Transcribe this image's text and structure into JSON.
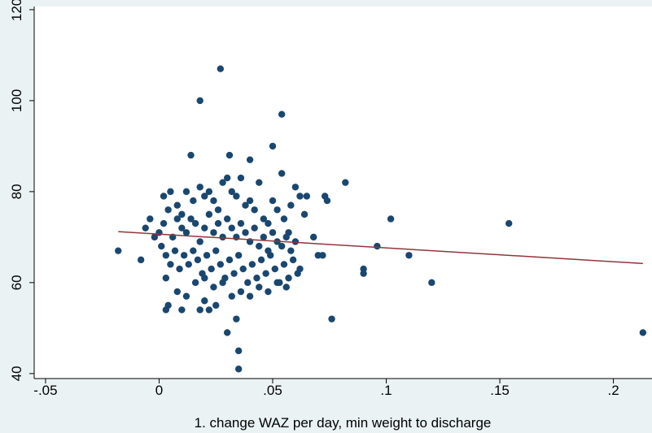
{
  "chart_data": {
    "type": "scatter",
    "x_label": "1. change WAZ per day, min weight to discharge",
    "xlim": [
      -0.055,
      0.217
    ],
    "ylim": [
      38.9,
      120.7
    ],
    "xticks": [
      {
        "value": -0.05,
        "label": "-.05"
      },
      0,
      {
        "value": 0.05,
        "label": ".05"
      },
      {
        "value": 0.1,
        "label": ".1"
      },
      {
        "value": 0.15,
        "label": ".15"
      },
      {
        "value": 0.2,
        "label": ".2"
      }
    ],
    "yticks": [
      40,
      60,
      80,
      100,
      120
    ],
    "point_color": "#1a476f",
    "line_color": "#90353b",
    "points": {
      "x": [
        -0.018,
        0.027,
        0.018,
        0.054,
        0.014,
        0.031,
        0.05,
        0.04,
        0.054,
        0.082,
        0.073,
        0.074,
        0.102,
        0.154,
        0.096,
        0.11,
        0.12,
        0.09,
        0.09,
        0.076,
        0.213,
        0.035,
        0.035,
        0.03,
        0.034,
        -0.008,
        -0.006,
        -0.004,
        -0.002,
        0,
        0.003,
        0.004,
        0.01,
        0.018,
        0.022,
        0.02,
        0.025,
        0.068,
        0.07,
        0.072,
        0.064,
        0.062,
        0.065,
        0.06,
        0.058,
        0.002,
        0.005,
        0.008,
        0.01,
        0.012,
        0.015,
        0.018,
        0.02,
        0.022,
        0.024,
        0.026,
        0.028,
        0.03,
        0.032,
        0.034,
        0.036,
        0.038,
        0.04,
        0.042,
        0.044,
        0.046,
        0.048,
        0.05,
        0.052,
        0.055,
        0.057,
        0.002,
        0.004,
        0.006,
        0.008,
        0.01,
        0.012,
        0.014,
        0.016,
        0.018,
        0.02,
        0.022,
        0.024,
        0.026,
        0.028,
        0.03,
        0.032,
        0.034,
        0.036,
        0.038,
        0.04,
        0.042,
        0.044,
        0.046,
        0.048,
        0.05,
        0.052,
        0.054,
        0.056,
        0.058,
        0.06,
        0.001,
        0.003,
        0.005,
        0.007,
        0.009,
        0.011,
        0.013,
        0.015,
        0.017,
        0.019,
        0.021,
        0.023,
        0.025,
        0.027,
        0.029,
        0.031,
        0.033,
        0.035,
        0.037,
        0.039,
        0.041,
        0.043,
        0.045,
        0.047,
        0.049,
        0.051,
        0.053,
        0.055,
        0.057,
        0.059,
        0.061,
        0.003,
        0.008,
        0.012,
        0.016,
        0.02,
        0.024,
        0.028,
        0.032,
        0.036,
        0.04,
        0.044,
        0.048,
        0.052,
        0.056,
        0.062
      ],
      "y": [
        67,
        107,
        100,
        97,
        88,
        88,
        90,
        87,
        84,
        82,
        79,
        78,
        74,
        73,
        68,
        66,
        60,
        63,
        62,
        52,
        49,
        45,
        41,
        49,
        52,
        65,
        72,
        74,
        70,
        71,
        54,
        55,
        54,
        54,
        54,
        56,
        55,
        70,
        66,
        66,
        75,
        79,
        79,
        81,
        77,
        79,
        80,
        77,
        75,
        80,
        78,
        81,
        79,
        80,
        78,
        76,
        82,
        83,
        80,
        79,
        83,
        77,
        78,
        76,
        82,
        74,
        73,
        78,
        76,
        74,
        71,
        73,
        76,
        70,
        74,
        72,
        71,
        74,
        73,
        69,
        72,
        75,
        71,
        73,
        70,
        74,
        72,
        70,
        73,
        71,
        69,
        72,
        68,
        70,
        67,
        71,
        69,
        68,
        70,
        67,
        69,
        68,
        66,
        64,
        67,
        63,
        66,
        64,
        67,
        65,
        62,
        66,
        63,
        67,
        64,
        61,
        65,
        62,
        66,
        63,
        60,
        64,
        61,
        65,
        62,
        66,
        63,
        60,
        64,
        61,
        65,
        62,
        61,
        58,
        57,
        60,
        61,
        59,
        60,
        57,
        58,
        57,
        59,
        58,
        60,
        59,
        63
      ]
    },
    "fit": {
      "x": [
        -0.018,
        0.213
      ],
      "y": [
        71.2,
        64.2
      ]
    }
  }
}
